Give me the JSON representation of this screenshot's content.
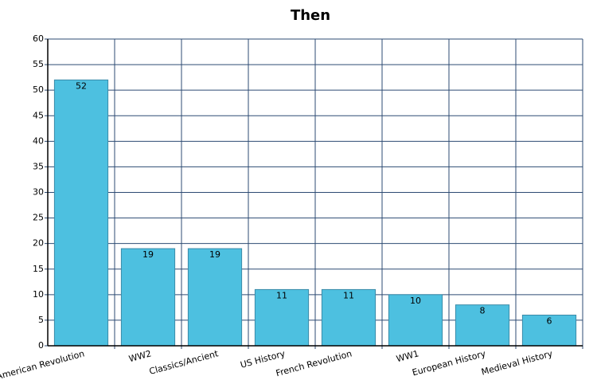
{
  "chart_data": {
    "type": "bar",
    "title": "Then",
    "categories": [
      "American Revolution",
      "WW2",
      "Classics/Ancient",
      "US History",
      "French Revolution",
      "WW1",
      "European History",
      "Medieval History"
    ],
    "values": [
      52,
      19,
      19,
      11,
      11,
      10,
      8,
      6
    ],
    "color": "#4dc0e0",
    "ylim": [
      0,
      60
    ],
    "yticks": [
      0,
      5,
      10,
      15,
      20,
      25,
      30,
      35,
      40,
      45,
      50,
      55,
      60
    ],
    "grid": true
  }
}
